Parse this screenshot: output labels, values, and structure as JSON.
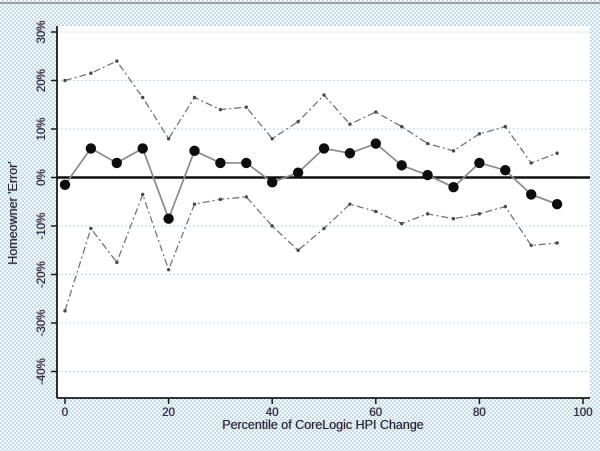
{
  "figure": {
    "x_axis_title": "Percentile of CoreLogic HPI Change",
    "y_axis_title": "Homeowner 'Error'"
  },
  "colors": {
    "plot_background": "#ffffff",
    "page_dither": "#c6dde7",
    "axis": "#1a1a1a",
    "gridline": "#a8cfdc",
    "reference_line": "#111111",
    "main_line": "#8a8a8a",
    "main_marker": "#0d0d0d",
    "ci_line": "#757575",
    "scan_artifact": "#7a7a7a"
  },
  "chart_data": {
    "type": "line",
    "title": "",
    "xlabel": "Percentile of CoreLogic HPI Change",
    "ylabel": "Homeowner 'Error'",
    "x": [
      0,
      5,
      10,
      15,
      20,
      25,
      30,
      35,
      40,
      45,
      50,
      55,
      60,
      65,
      70,
      75,
      80,
      85,
      90,
      95
    ],
    "series": [
      {
        "name": "point-estimate",
        "style": "solid-markers",
        "values": [
          -1.5,
          6,
          3,
          6,
          -8.5,
          5.5,
          3,
          3,
          -1,
          1,
          6,
          5,
          7,
          2.5,
          0.5,
          -2,
          3,
          1.5,
          -3.5,
          -5.5
        ]
      },
      {
        "name": "upper-confidence-band",
        "style": "dashed-line",
        "values": [
          20,
          21.5,
          24,
          16.5,
          8,
          16.5,
          14,
          14.5,
          8,
          11.5,
          17,
          11,
          13.5,
          10.5,
          7,
          5.5,
          9,
          10.5,
          3,
          5
        ]
      },
      {
        "name": "lower-confidence-band",
        "style": "dashed-line",
        "values": [
          -27.5,
          -10.5,
          -17.5,
          -3.5,
          -19,
          -5.5,
          -4.5,
          -4,
          -10,
          -15,
          -10.5,
          -5.5,
          -7,
          -9.5,
          -7.5,
          -8.5,
          -7.5,
          -6,
          -14,
          -13.5
        ]
      }
    ],
    "reference_line_y": 0,
    "x_ticks": [
      0,
      20,
      40,
      60,
      80,
      100
    ],
    "y_ticks": [
      "30%",
      "20%",
      "10%",
      "0%",
      "-10%",
      "-20%",
      "-30%",
      "-40%"
    ],
    "y_tick_values": [
      30,
      20,
      10,
      0,
      -10,
      -20,
      -30,
      -40
    ],
    "xlim": [
      -1.5,
      101.5
    ],
    "ylim": [
      -45,
      32
    ],
    "grid": "horizontal-dotted",
    "legend": "none"
  }
}
